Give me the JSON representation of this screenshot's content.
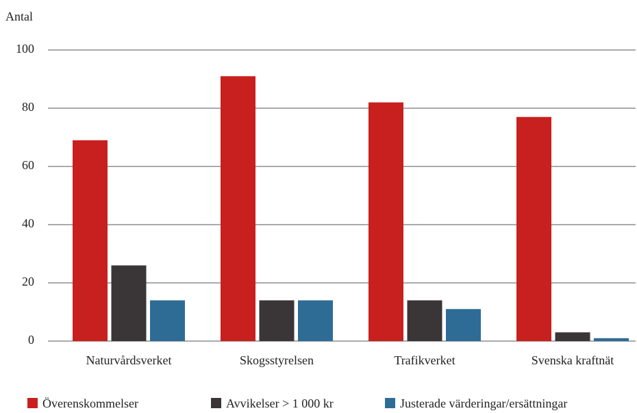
{
  "chart_data": {
    "type": "bar",
    "y_label": "Antal",
    "categories": [
      "Naturvårdsverket",
      "Skogsstyrelsen",
      "Trafikverket",
      "Svenska kraftnät"
    ],
    "series": [
      {
        "name": "Överenskommelser",
        "color": "#c8201e",
        "values": [
          69,
          91,
          82,
          77
        ]
      },
      {
        "name": "Avvikelser > 1 000 kr",
        "color": "#3a3536",
        "values": [
          26,
          14,
          14,
          3
        ]
      },
      {
        "name": "Justerade värderingar/ersättningar",
        "color": "#2e6c96",
        "values": [
          14,
          14,
          11,
          1
        ]
      }
    ],
    "ylim": [
      0,
      100
    ],
    "yticks": [
      0,
      20,
      40,
      60,
      80,
      100
    ],
    "grid": true,
    "legend": "bottom"
  }
}
